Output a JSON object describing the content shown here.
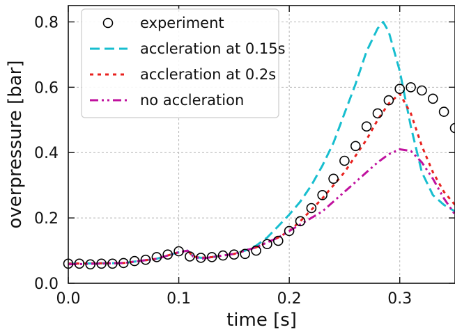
{
  "chart_data": {
    "type": "line",
    "xlabel": "time [s]",
    "ylabel": "overpressure [bar]",
    "xlim": [
      0.0,
      0.35
    ],
    "ylim": [
      0.0,
      0.85
    ],
    "xticks": [
      0.0,
      0.1,
      0.2,
      0.3
    ],
    "xtick_labels": [
      "0.0",
      "0.1",
      "0.2",
      "0.3"
    ],
    "yticks": [
      0.0,
      0.2,
      0.4,
      0.6,
      0.8
    ],
    "ytick_labels": [
      "0.0",
      "0.2",
      "0.4",
      "0.6",
      "0.8"
    ],
    "grid": true,
    "legend_position": "top-left",
    "series": [
      {
        "name": "experiment",
        "style": "open-circle",
        "color": "#000000",
        "points": [
          [
            0.0,
            0.06
          ],
          [
            0.01,
            0.06
          ],
          [
            0.02,
            0.058
          ],
          [
            0.03,
            0.06
          ],
          [
            0.04,
            0.06
          ],
          [
            0.05,
            0.062
          ],
          [
            0.06,
            0.068
          ],
          [
            0.07,
            0.072
          ],
          [
            0.08,
            0.08
          ],
          [
            0.09,
            0.088
          ],
          [
            0.1,
            0.098
          ],
          [
            0.11,
            0.082
          ],
          [
            0.12,
            0.078
          ],
          [
            0.13,
            0.08
          ],
          [
            0.14,
            0.085
          ],
          [
            0.15,
            0.088
          ],
          [
            0.16,
            0.09
          ],
          [
            0.17,
            0.1
          ],
          [
            0.18,
            0.12
          ],
          [
            0.19,
            0.13
          ],
          [
            0.2,
            0.16
          ],
          [
            0.21,
            0.19
          ],
          [
            0.22,
            0.23
          ],
          [
            0.23,
            0.27
          ],
          [
            0.24,
            0.32
          ],
          [
            0.25,
            0.375
          ],
          [
            0.26,
            0.42
          ],
          [
            0.27,
            0.48
          ],
          [
            0.28,
            0.52
          ],
          [
            0.29,
            0.56
          ],
          [
            0.3,
            0.595
          ],
          [
            0.31,
            0.6
          ],
          [
            0.32,
            0.59
          ],
          [
            0.33,
            0.565
          ],
          [
            0.34,
            0.525
          ],
          [
            0.35,
            0.475
          ]
        ]
      },
      {
        "name": "accleration at 0.15s",
        "style": "dashed",
        "color": "#17becf",
        "points": [
          [
            0.0,
            0.06
          ],
          [
            0.05,
            0.062
          ],
          [
            0.08,
            0.075
          ],
          [
            0.1,
            0.095
          ],
          [
            0.108,
            0.1
          ],
          [
            0.113,
            0.082
          ],
          [
            0.12,
            0.078
          ],
          [
            0.13,
            0.08
          ],
          [
            0.15,
            0.09
          ],
          [
            0.16,
            0.1
          ],
          [
            0.17,
            0.115
          ],
          [
            0.18,
            0.14
          ],
          [
            0.19,
            0.175
          ],
          [
            0.2,
            0.21
          ],
          [
            0.21,
            0.25
          ],
          [
            0.22,
            0.3
          ],
          [
            0.23,
            0.36
          ],
          [
            0.24,
            0.43
          ],
          [
            0.25,
            0.52
          ],
          [
            0.26,
            0.61
          ],
          [
            0.27,
            0.71
          ],
          [
            0.28,
            0.78
          ],
          [
            0.285,
            0.8
          ],
          [
            0.29,
            0.77
          ],
          [
            0.3,
            0.65
          ],
          [
            0.31,
            0.48
          ],
          [
            0.32,
            0.34
          ],
          [
            0.33,
            0.27
          ],
          [
            0.34,
            0.24
          ],
          [
            0.35,
            0.22
          ]
        ]
      },
      {
        "name": "accleration at 0.2s",
        "style": "dotted",
        "color": "#e8211e",
        "points": [
          [
            0.0,
            0.06
          ],
          [
            0.05,
            0.062
          ],
          [
            0.08,
            0.075
          ],
          [
            0.1,
            0.095
          ],
          [
            0.108,
            0.1
          ],
          [
            0.113,
            0.082
          ],
          [
            0.12,
            0.078
          ],
          [
            0.13,
            0.08
          ],
          [
            0.15,
            0.09
          ],
          [
            0.17,
            0.11
          ],
          [
            0.19,
            0.14
          ],
          [
            0.2,
            0.16
          ],
          [
            0.21,
            0.19
          ],
          [
            0.22,
            0.225
          ],
          [
            0.23,
            0.26
          ],
          [
            0.24,
            0.3
          ],
          [
            0.25,
            0.34
          ],
          [
            0.26,
            0.39
          ],
          [
            0.27,
            0.44
          ],
          [
            0.28,
            0.5
          ],
          [
            0.29,
            0.55
          ],
          [
            0.3,
            0.58
          ],
          [
            0.31,
            0.52
          ],
          [
            0.32,
            0.42
          ],
          [
            0.33,
            0.34
          ],
          [
            0.34,
            0.28
          ],
          [
            0.35,
            0.24
          ]
        ]
      },
      {
        "name": "no accleration",
        "style": "dash-dot-dot",
        "color": "#c0119e",
        "points": [
          [
            0.0,
            0.058
          ],
          [
            0.05,
            0.062
          ],
          [
            0.08,
            0.075
          ],
          [
            0.1,
            0.095
          ],
          [
            0.108,
            0.1
          ],
          [
            0.113,
            0.082
          ],
          [
            0.12,
            0.075
          ],
          [
            0.13,
            0.08
          ],
          [
            0.15,
            0.09
          ],
          [
            0.17,
            0.11
          ],
          [
            0.19,
            0.14
          ],
          [
            0.2,
            0.16
          ],
          [
            0.21,
            0.18
          ],
          [
            0.22,
            0.2
          ],
          [
            0.23,
            0.22
          ],
          [
            0.24,
            0.25
          ],
          [
            0.25,
            0.28
          ],
          [
            0.26,
            0.31
          ],
          [
            0.27,
            0.34
          ],
          [
            0.28,
            0.37
          ],
          [
            0.29,
            0.395
          ],
          [
            0.3,
            0.41
          ],
          [
            0.31,
            0.405
          ],
          [
            0.32,
            0.37
          ],
          [
            0.33,
            0.32
          ],
          [
            0.34,
            0.26
          ],
          [
            0.35,
            0.21
          ]
        ]
      }
    ]
  }
}
